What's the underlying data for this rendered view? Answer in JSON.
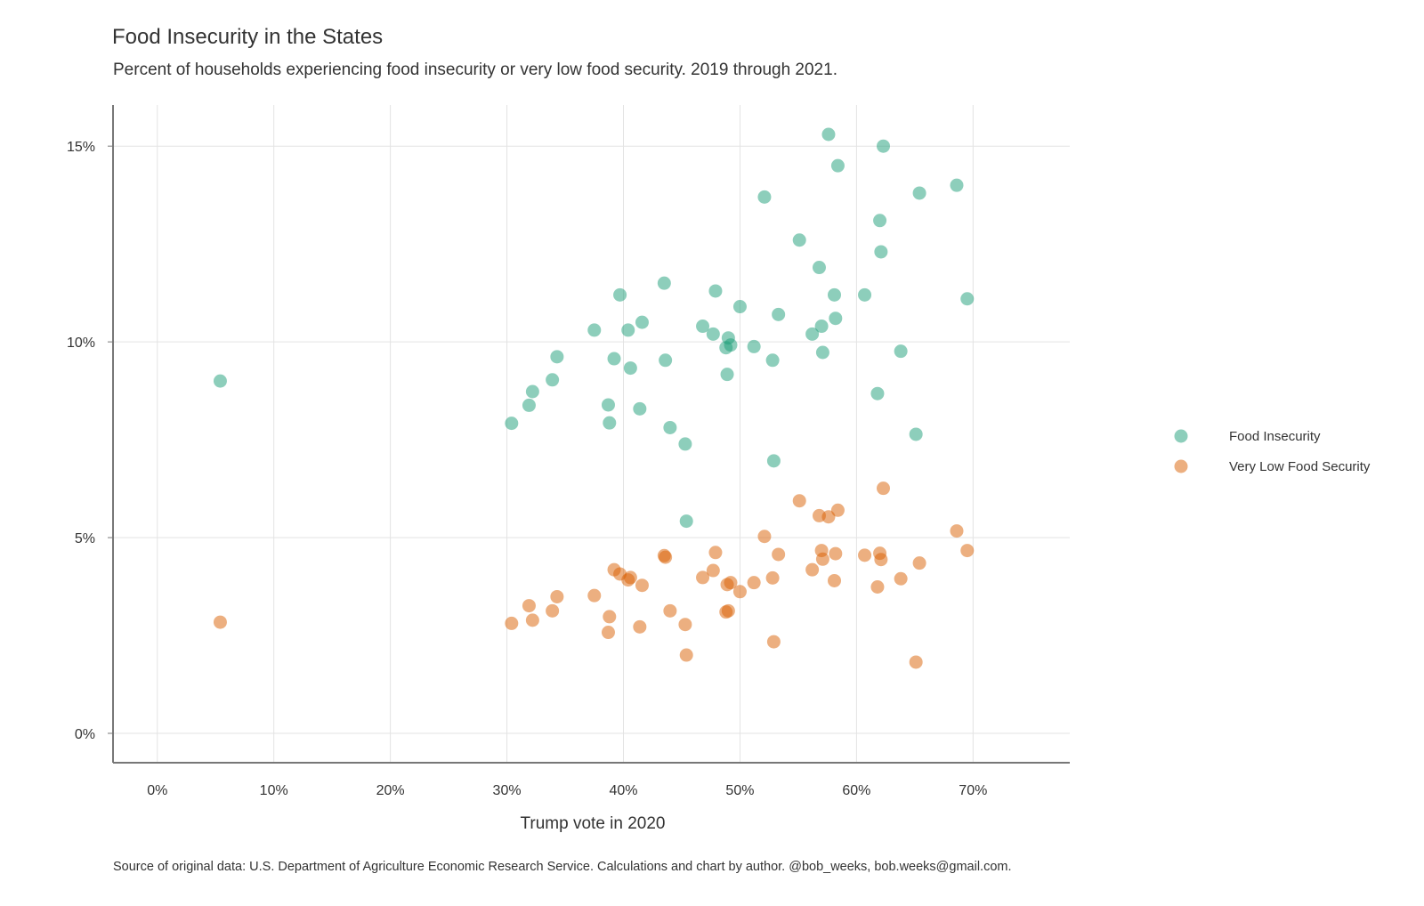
{
  "chart_data": {
    "type": "scatter",
    "title": "Food Insecurity in the States",
    "subtitle": "Percent of households experiencing food insecurity or very low food security. 2019 through 2021.",
    "caption": "Source of original data: U.S. Department of Agriculture Economic Research Service. Calculations and chart by author. @bob_weeks, bob.weeks@gmail.com.",
    "xlabel": "Trump vote in 2020",
    "ylabel": "",
    "xlim": [
      -0.038,
      0.783
    ],
    "ylim": [
      -0.0075,
      0.1605
    ],
    "x_ticks": [
      0,
      0.1,
      0.2,
      0.3,
      0.4,
      0.5,
      0.6,
      0.7
    ],
    "x_tick_labels": [
      "0%",
      "10%",
      "20%",
      "30%",
      "40%",
      "50%",
      "60%",
      "70%"
    ],
    "y_ticks": [
      0,
      0.05,
      0.1,
      0.15
    ],
    "y_tick_labels": [
      "0%",
      "5%",
      "10%",
      "15%"
    ],
    "grid": true,
    "legend": "right",
    "colors": {
      "food_insecurity": "#1b9e77",
      "very_low": "#d95f02"
    },
    "series": [
      {
        "name": "Food Insecurity",
        "color": "#1b9e77",
        "x": [
          0.054,
          0.304,
          0.319,
          0.322,
          0.339,
          0.343,
          0.375,
          0.387,
          0.388,
          0.392,
          0.397,
          0.404,
          0.406,
          0.414,
          0.416,
          0.435,
          0.436,
          0.44,
          0.453,
          0.454,
          0.468,
          0.477,
          0.479,
          0.488,
          0.489,
          0.49,
          0.492,
          0.5,
          0.512,
          0.521,
          0.528,
          0.529,
          0.533,
          0.551,
          0.562,
          0.568,
          0.57,
          0.571,
          0.576,
          0.581,
          0.582,
          0.584,
          0.607,
          0.618,
          0.62,
          0.621,
          0.623,
          0.638,
          0.651,
          0.654,
          0.686,
          0.695
        ],
        "y": [
          0.09,
          0.0792,
          0.0838,
          0.0873,
          0.0903,
          0.0962,
          0.103,
          0.0839,
          0.0793,
          0.0957,
          0.112,
          0.103,
          0.0933,
          0.0829,
          0.105,
          0.115,
          0.0953,
          0.0781,
          0.0739,
          0.0542,
          0.104,
          0.102,
          0.113,
          0.0985,
          0.0917,
          0.101,
          0.0992,
          0.109,
          0.0988,
          0.137,
          0.0953,
          0.0696,
          0.107,
          0.126,
          0.102,
          0.119,
          0.104,
          0.0973,
          0.153,
          0.112,
          0.106,
          0.145,
          0.112,
          0.0868,
          0.131,
          0.123,
          0.15,
          0.0976,
          0.0764,
          0.138,
          0.14,
          0.111
        ]
      },
      {
        "name": "Very Low Food Security",
        "color": "#d95f02",
        "x": [
          0.054,
          0.304,
          0.319,
          0.322,
          0.339,
          0.343,
          0.375,
          0.387,
          0.388,
          0.392,
          0.397,
          0.404,
          0.406,
          0.414,
          0.416,
          0.435,
          0.436,
          0.44,
          0.453,
          0.454,
          0.468,
          0.477,
          0.479,
          0.488,
          0.489,
          0.49,
          0.492,
          0.5,
          0.512,
          0.521,
          0.528,
          0.529,
          0.533,
          0.551,
          0.562,
          0.568,
          0.57,
          0.571,
          0.576,
          0.581,
          0.582,
          0.584,
          0.607,
          0.618,
          0.62,
          0.621,
          0.623,
          0.638,
          0.651,
          0.654,
          0.686,
          0.695
        ],
        "y": [
          0.0284,
          0.0281,
          0.0326,
          0.0289,
          0.0313,
          0.0349,
          0.0352,
          0.0258,
          0.0298,
          0.0418,
          0.0407,
          0.0392,
          0.0398,
          0.0272,
          0.0378,
          0.0454,
          0.045,
          0.0313,
          0.0278,
          0.02,
          0.0398,
          0.0416,
          0.0462,
          0.031,
          0.038,
          0.0313,
          0.0385,
          0.0362,
          0.0385,
          0.0503,
          0.0397,
          0.0234,
          0.0457,
          0.0594,
          0.0418,
          0.0556,
          0.0467,
          0.0445,
          0.0553,
          0.039,
          0.0459,
          0.057,
          0.0455,
          0.0374,
          0.046,
          0.0444,
          0.0626,
          0.0395,
          0.0182,
          0.0435,
          0.0517,
          0.0467
        ]
      }
    ]
  }
}
